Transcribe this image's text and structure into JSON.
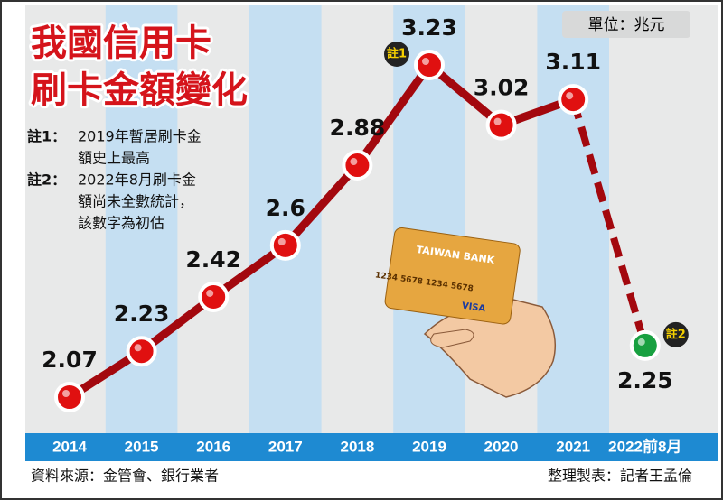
{
  "chart_data": {
    "type": "line",
    "title": [
      "我國信用卡",
      "刷卡金額變化"
    ],
    "unit": "單位：兆元",
    "categories": [
      "2014",
      "2015",
      "2016",
      "2017",
      "2018",
      "2019",
      "2020",
      "2021",
      "2022前8月"
    ],
    "values": [
      2.07,
      2.23,
      2.42,
      2.6,
      2.88,
      3.23,
      3.02,
      3.11,
      2.25
    ],
    "color": "#a3080e",
    "marker_color": "#e01010",
    "last_point_color": "#18a040",
    "dashed_last_segment": true,
    "notes": [
      {
        "label": "註1：",
        "lines": [
          "2019年暫居刷卡金",
          "額史上最高"
        ]
      },
      {
        "label": "註2：",
        "lines": [
          "2022年8月刷卡金",
          "額尚未全數統計，",
          "該數字為初估"
        ]
      }
    ],
    "annotations": [
      {
        "text": "註1",
        "index": 5
      },
      {
        "text": "註2",
        "index": 8
      }
    ],
    "card_texts": [
      "TAIWAN BANK",
      "1234 5678 1234 5678",
      "VISA"
    ],
    "source": "資料來源：金管會、銀行業者",
    "credit": "整理製表：記者王孟倫"
  }
}
